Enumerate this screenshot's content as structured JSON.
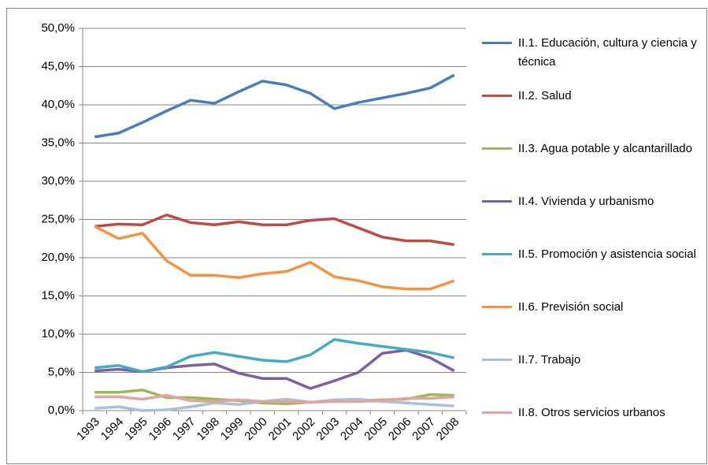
{
  "chart_data": {
    "type": "line",
    "categories": [
      "1993",
      "1994",
      "1995",
      "1996",
      "1997",
      "1998",
      "1999",
      "2000",
      "2001",
      "2002",
      "2003",
      "2004",
      "2005",
      "2006",
      "2007",
      "2008"
    ],
    "series": [
      {
        "name": "II.1. Educación, cultura y ciencia y técnica",
        "color": "#4a7ebb",
        "values": [
          35.8,
          36.3,
          37.7,
          39.2,
          40.6,
          40.2,
          41.7,
          43.1,
          42.6,
          41.5,
          39.5,
          40.3,
          40.9,
          41.5,
          42.2,
          43.9
        ]
      },
      {
        "name": "II.2. Salud",
        "color": "#be4b48",
        "values": [
          24.1,
          24.4,
          24.3,
          25.6,
          24.6,
          24.3,
          24.7,
          24.3,
          24.3,
          24.9,
          25.1,
          23.9,
          22.7,
          22.2,
          22.2,
          21.7
        ]
      },
      {
        "name": "II.3. Agua potable y alcantarillado",
        "color": "#98b954",
        "values": [
          2.4,
          2.4,
          2.7,
          1.7,
          1.7,
          1.5,
          1.3,
          1.0,
          0.9,
          1.1,
          1.2,
          1.3,
          1.4,
          1.5,
          2.1,
          2.0
        ]
      },
      {
        "name": "II.4. Vivienda y urbanismo",
        "color": "#7d60a0",
        "values": [
          5.2,
          5.4,
          5.1,
          5.6,
          5.9,
          6.1,
          4.9,
          4.2,
          4.2,
          2.9,
          3.9,
          5.0,
          7.5,
          7.9,
          6.9,
          5.2
        ]
      },
      {
        "name": "II.5. Promoción y asistencia social",
        "color": "#46aac5",
        "values": [
          5.6,
          5.9,
          5.1,
          5.7,
          7.1,
          7.6,
          7.1,
          6.6,
          6.4,
          7.3,
          9.3,
          8.8,
          8.4,
          8.0,
          7.6,
          6.9
        ]
      },
      {
        "name": "II.6. Previsión social",
        "color": "#f69240",
        "values": [
          24.1,
          22.5,
          23.2,
          19.6,
          17.7,
          17.7,
          17.4,
          17.9,
          18.2,
          19.4,
          17.5,
          17.0,
          16.2,
          15.9,
          15.9,
          17.0
        ]
      },
      {
        "name": "II.7. Trabajo",
        "color": "#a7c0de",
        "values": [
          0.3,
          0.5,
          0.0,
          0.1,
          0.5,
          1.0,
          0.8,
          1.2,
          1.5,
          1.1,
          1.4,
          1.5,
          1.2,
          1.0,
          0.8,
          0.6
        ]
      },
      {
        "name": "II.8. Otros servicios urbanos",
        "color": "#e3a3a2",
        "values": [
          1.8,
          1.8,
          1.5,
          2.0,
          1.3,
          1.2,
          1.4,
          1.2,
          1.2,
          1.1,
          1.2,
          1.2,
          1.3,
          1.6,
          1.6,
          1.8
        ]
      }
    ],
    "ylim": [
      0,
      50
    ],
    "yticks": [
      {
        "value": 0,
        "label": "0,0%"
      },
      {
        "value": 5,
        "label": "5,0%"
      },
      {
        "value": 10,
        "label": "10,0%"
      },
      {
        "value": 15,
        "label": "15,0%"
      },
      {
        "value": 20,
        "label": "20,0%"
      },
      {
        "value": 25,
        "label": "25,0%"
      },
      {
        "value": 30,
        "label": "30,0%"
      },
      {
        "value": 35,
        "label": "35,0%"
      },
      {
        "value": 40,
        "label": "40,0%"
      },
      {
        "value": 45,
        "label": "45,0%"
      },
      {
        "value": 50,
        "label": "50,0%"
      }
    ],
    "grid": true,
    "legend": "right"
  }
}
